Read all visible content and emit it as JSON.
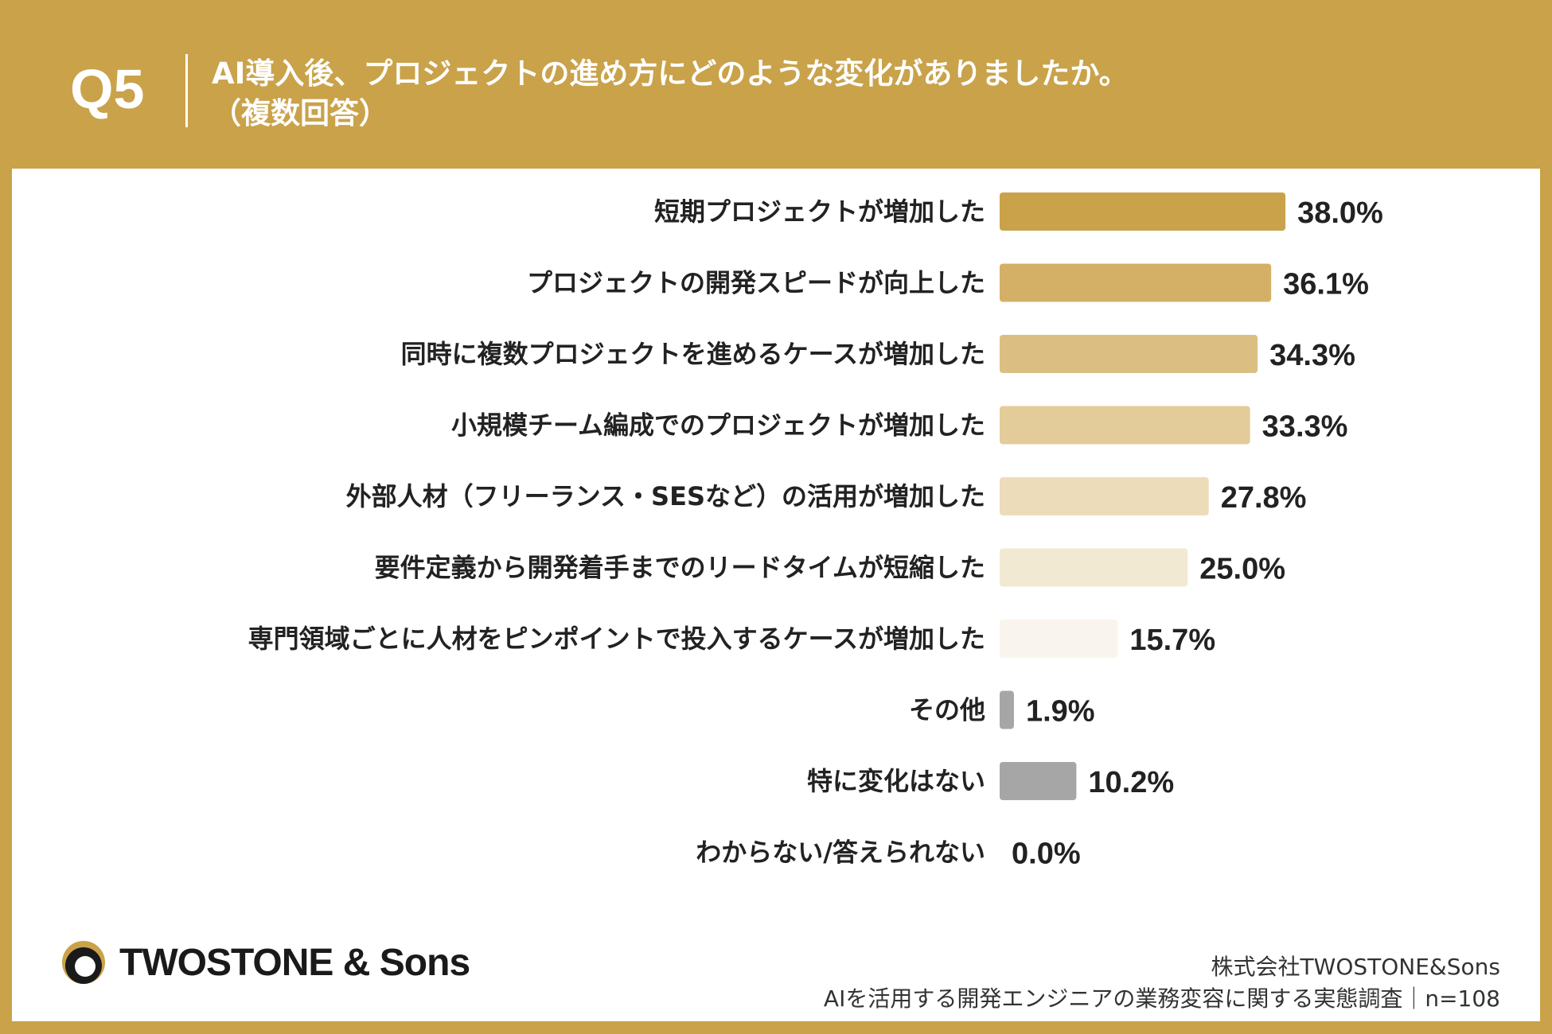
{
  "header": {
    "question_number": "Q5",
    "title": "AI導入後、プロジェクトの進め方にどのような変化がありましたか。",
    "subtitle": "（複数回答）"
  },
  "chart_data": {
    "type": "bar",
    "orientation": "horizontal",
    "title": "AI導入後、プロジェクトの進め方にどのような変化がありましたか。（複数回答）",
    "unit": "%",
    "xlim": [
      0,
      100
    ],
    "grid": false,
    "categories": [
      "短期プロジェクトが増加した",
      "プロジェクトの開発スピードが向上した",
      "同時に複数プロジェクトを進めるケースが増加した",
      "小規模チーム編成でのプロジェクトが増加した",
      "外部人材（フリーランス・SESなど）の活用が増加した",
      "要件定義から開発着手までのリードタイムが短縮した",
      "専門領域ごとに人材をピンポイントで投入するケースが増加した",
      "その他",
      "特に変化はない",
      "わからない/答えられない"
    ],
    "values": [
      38.0,
      36.1,
      34.3,
      33.3,
      27.8,
      25.0,
      15.7,
      1.9,
      10.2,
      0.0
    ],
    "value_labels": [
      "38.0%",
      "36.1%",
      "34.3%",
      "33.3%",
      "27.8%",
      "25.0%",
      "15.7%",
      "1.9%",
      "10.2%",
      "0.0%"
    ],
    "colors": [
      "#c9a24a",
      "#d3b065",
      "#dbbf82",
      "#e3cc9a",
      "#ecdcb9",
      "#f2e9d3",
      "#f9f4ed",
      "#a6a6a6",
      "#a6a6a6",
      "#a6a6a6"
    ]
  },
  "footer": {
    "logo_text": "TWOSTONE & Sons",
    "logo_icon": "crescent-logo-icon",
    "company": "株式会社TWOSTONE&Sons",
    "survey": "AIを活用する開発エンジニアの業務変容に関する実態調査｜n=108"
  },
  "colors": {
    "frame": "#c9a24a",
    "panel": "#ffffff",
    "text": "#222222"
  }
}
